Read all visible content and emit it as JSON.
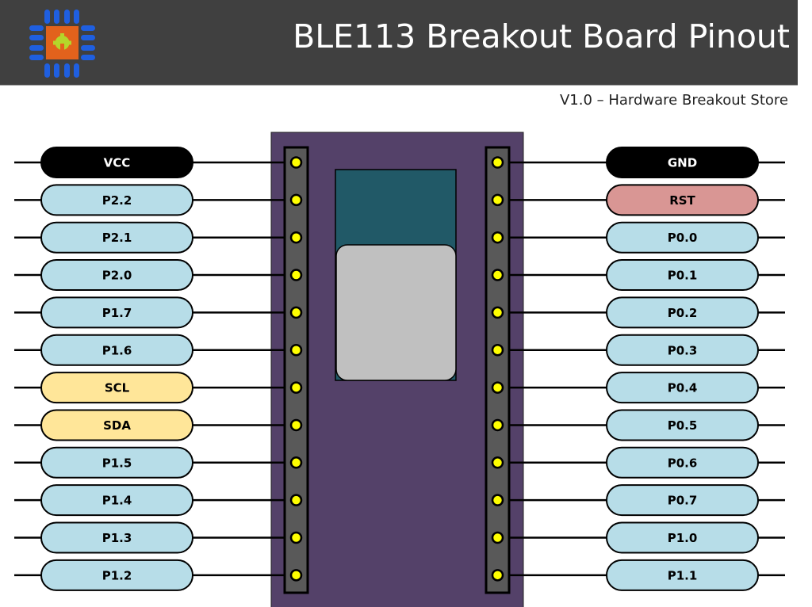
{
  "header": {
    "title": "BLE113 Breakout Board Pinout",
    "subtitle": "V1.0 – Hardware Breakout Store",
    "logo_icon": "chip-gear-logo-icon"
  },
  "colors": {
    "header_bg": "#404040",
    "board": "#544169",
    "header_strip": "#595959",
    "pin_dot": "#ffff00",
    "module_shield": "#215967",
    "module_chip": "#c0c0c0",
    "power": "#000000",
    "reset": "#d99694",
    "i2c": "#ffe699",
    "gpio": "#b7dde8"
  },
  "left_pins": [
    {
      "label": "VCC",
      "type": "power"
    },
    {
      "label": "P2.2",
      "type": "gpio"
    },
    {
      "label": "P2.1",
      "type": "gpio"
    },
    {
      "label": "P2.0",
      "type": "gpio"
    },
    {
      "label": "P1.7",
      "type": "gpio"
    },
    {
      "label": "P1.6",
      "type": "gpio"
    },
    {
      "label": "SCL",
      "type": "i2c"
    },
    {
      "label": "SDA",
      "type": "i2c"
    },
    {
      "label": "P1.5",
      "type": "gpio"
    },
    {
      "label": "P1.4",
      "type": "gpio"
    },
    {
      "label": "P1.3",
      "type": "gpio"
    },
    {
      "label": "P1.2",
      "type": "gpio"
    }
  ],
  "right_pins": [
    {
      "label": "GND",
      "type": "power"
    },
    {
      "label": "RST",
      "type": "reset"
    },
    {
      "label": "P0.0",
      "type": "gpio"
    },
    {
      "label": "P0.1",
      "type": "gpio"
    },
    {
      "label": "P0.2",
      "type": "gpio"
    },
    {
      "label": "P0.3",
      "type": "gpio"
    },
    {
      "label": "P0.4",
      "type": "gpio"
    },
    {
      "label": "P0.5",
      "type": "gpio"
    },
    {
      "label": "P0.6",
      "type": "gpio"
    },
    {
      "label": "P0.7",
      "type": "gpio"
    },
    {
      "label": "P1.0",
      "type": "gpio"
    },
    {
      "label": "P1.1",
      "type": "gpio"
    }
  ]
}
